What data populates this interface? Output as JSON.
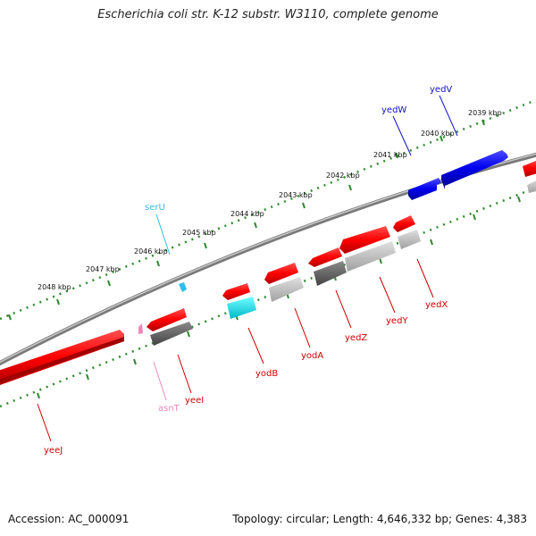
{
  "title": "Escherichia coli str. K-12 substr. W3110, complete genome",
  "footer": {
    "accession": "Accession: AC_000091",
    "stats": "Topology: circular; Length: 4,646,332 bp; Genes: 4,383"
  },
  "kbp_ticks": [
    "2039 kbp",
    "2040 kbp",
    "2041 kbp",
    "2042 kbp",
    "2043 kbp",
    "2044 kbp",
    "2045 kbp",
    "2046 kbp",
    "2047 kbp",
    "2048 kbp"
  ],
  "genes": [
    {
      "name": "yedV",
      "color": "#1010cc"
    },
    {
      "name": "yedW",
      "color": "#1010cc"
    },
    {
      "name": "serU",
      "color": "#33bbee"
    },
    {
      "name": "yedX",
      "color": "#cc0000"
    },
    {
      "name": "yedY",
      "color": "#cc0000"
    },
    {
      "name": "yedZ",
      "color": "#cc0000"
    },
    {
      "name": "yodA",
      "color": "#cc0000"
    },
    {
      "name": "yodB",
      "color": "#cc0000"
    },
    {
      "name": "yeeI",
      "color": "#cc0000"
    },
    {
      "name": "asnT",
      "color": "#ee88bb"
    },
    {
      "name": "yeeJ",
      "color": "#cc0000"
    }
  ],
  "colors": {
    "cds": "#ff0000",
    "forward_cds": "#0000ff",
    "gene_gray": "#8a8a8a",
    "cyan_feature": "#00e6e6",
    "trna_forward": "#33bbee",
    "trna_reverse": "#ee88bb",
    "ruler_dots": "#2e8b2e",
    "backbone": "#888888"
  }
}
